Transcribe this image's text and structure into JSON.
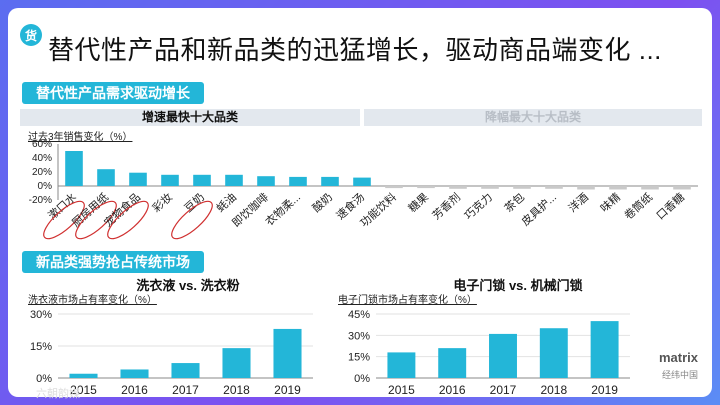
{
  "header": {
    "badge": "货",
    "title": "替代性产品和新品类的迅猛增长，驱动商品端变化 ..."
  },
  "section1": {
    "title": "替代性产品需求驱动增长",
    "left_header": "增速最快十大品类",
    "right_header": "降幅最大十大品类",
    "ylabel": "过去3年销售变化（%）"
  },
  "section2": {
    "title": "新品类强势抢占传统市场"
  },
  "logo": {
    "main": "matrix",
    "sub": "经纬中国"
  },
  "watermark": "六朝韵媒",
  "colors": {
    "accent": "#23b6d8",
    "bar": "#23b6d8",
    "bar_negative": "#c9c9c9",
    "circle": "#d03030"
  },
  "chart_data": [
    {
      "type": "bar",
      "title": "",
      "ylabel": "过去3年销售变化（%）",
      "ylim": [
        -20,
        60
      ],
      "yticks": [
        "60%",
        "40%",
        "20%",
        "0%",
        "-20%"
      ],
      "categories": [
        "漱口水",
        "厨房用纸",
        "宠物食品",
        "彩妆",
        "豆奶",
        "蚝油",
        "即饮咖啡",
        "衣物柔...",
        "酸奶",
        "速食汤",
        "功能饮料",
        "糖果",
        "芳香剂",
        "巧克力",
        "茶包",
        "皮具护...",
        "洋酒",
        "味精",
        "卷筒纸",
        "口香糖"
      ],
      "values": [
        50,
        24,
        19,
        16,
        16,
        16,
        14,
        13,
        13,
        12,
        -3,
        -3,
        -4,
        -4,
        -4,
        -4,
        -5,
        -5,
        -5,
        -5
      ],
      "highlighted": [
        "漱口水",
        "厨房用纸",
        "宠物食品",
        "豆奶"
      ]
    },
    {
      "type": "bar",
      "title": "洗衣液 vs. 洗衣粉",
      "ylabel": "洗衣液市场占有率变化（%）",
      "ylim": [
        0,
        30
      ],
      "yticks": [
        "30%",
        "15%",
        "0%"
      ],
      "categories": [
        "2015",
        "2016",
        "2017",
        "2018",
        "2019"
      ],
      "values": [
        2,
        4,
        7,
        14,
        23
      ]
    },
    {
      "type": "bar",
      "title": "电子门锁 vs. 机械门锁",
      "ylabel": "电子门锁市场占有率变化（%）",
      "ylim": [
        0,
        45
      ],
      "yticks": [
        "45%",
        "30%",
        "15%",
        "0%"
      ],
      "categories": [
        "2015",
        "2016",
        "2017",
        "2018",
        "2019"
      ],
      "values": [
        18,
        21,
        31,
        35,
        40
      ]
    }
  ]
}
